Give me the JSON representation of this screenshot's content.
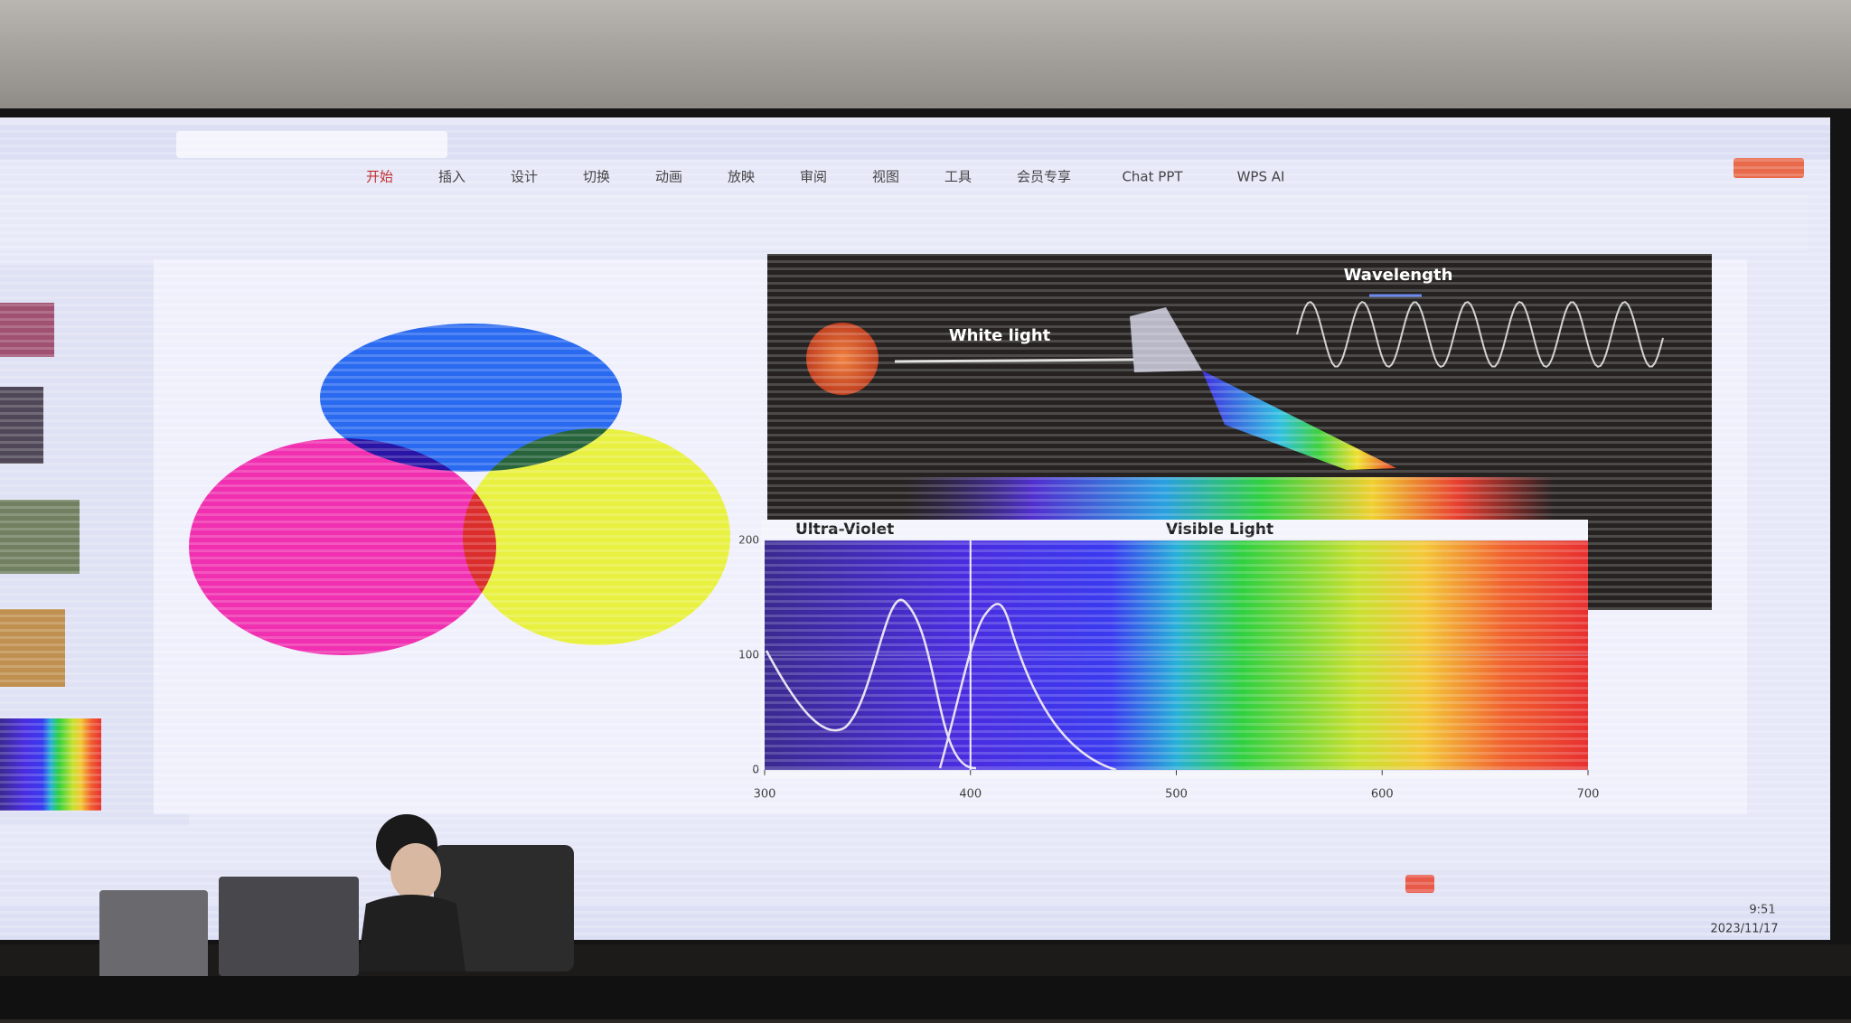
{
  "menu": [
    "开始",
    "插入",
    "设计",
    "切换",
    "动画",
    "放映",
    "审阅",
    "视图",
    "工具",
    "会员专享",
    "Chat PPT",
    "WPS AI"
  ],
  "slide": {
    "labels": {
      "white_light": "White light",
      "wavelength": "Wavelength",
      "ultra_violet": "Ultra-Violet",
      "visible_light": "Visible Light"
    },
    "spectrum": {
      "xlim": [
        300,
        700
      ],
      "xticks": [
        300,
        400,
        500,
        600,
        700
      ],
      "ylim": [
        0,
        200
      ],
      "yticks": [
        0,
        100,
        200
      ]
    }
  },
  "taskbar": {
    "time": "9:51",
    "date": "2023/11/17"
  }
}
